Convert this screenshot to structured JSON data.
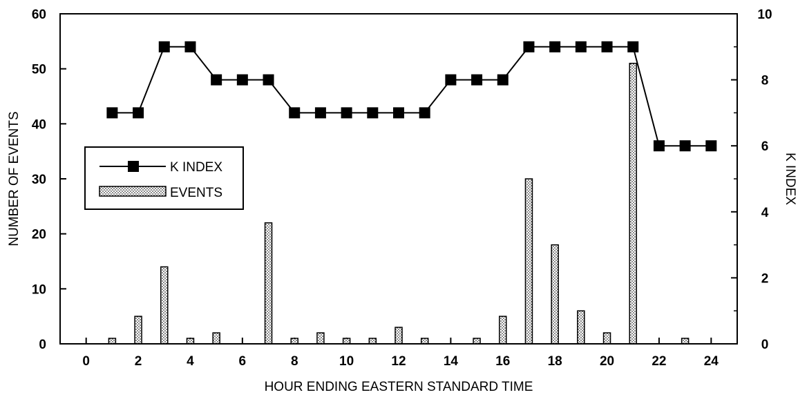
{
  "chart_data": {
    "type": "bar",
    "xlabel": "HOUR ENDING EASTERN STANDARD TIME",
    "ylabel": "NUMBER OF EVENTS",
    "y2label": "K INDEX",
    "xlim": [
      -1,
      25
    ],
    "ylim": [
      0,
      60
    ],
    "y2lim": [
      0,
      10
    ],
    "x_ticks": [
      0,
      2,
      4,
      6,
      8,
      10,
      12,
      14,
      16,
      18,
      20,
      22,
      24
    ],
    "y_ticks": [
      0,
      10,
      20,
      30,
      40,
      50,
      60
    ],
    "y2_ticks": [
      0,
      2,
      4,
      6,
      8,
      10
    ],
    "legend_position": "left",
    "grid": false,
    "series": [
      {
        "name": "EVENTS",
        "type": "bar",
        "axis": "left",
        "x": [
          1,
          2,
          3,
          4,
          5,
          7,
          8,
          9,
          10,
          11,
          12,
          13,
          15,
          16,
          17,
          18,
          19,
          20,
          21,
          23
        ],
        "values": [
          1,
          5,
          14,
          1,
          2,
          22,
          1,
          2,
          1,
          1,
          3,
          1,
          1,
          5,
          30,
          18,
          6,
          2,
          51,
          1
        ]
      },
      {
        "name": "K INDEX",
        "type": "line",
        "axis": "right",
        "x": [
          1,
          2,
          3,
          4,
          5,
          6,
          7,
          8,
          9,
          10,
          11,
          12,
          13,
          14,
          15,
          16,
          17,
          18,
          19,
          20,
          21,
          22,
          23,
          24
        ],
        "values": [
          7,
          7,
          9,
          9,
          8,
          8,
          8,
          7,
          7,
          7,
          7,
          7,
          7,
          8,
          8,
          8,
          9,
          9,
          9,
          9,
          9,
          6,
          6,
          6
        ]
      }
    ]
  }
}
